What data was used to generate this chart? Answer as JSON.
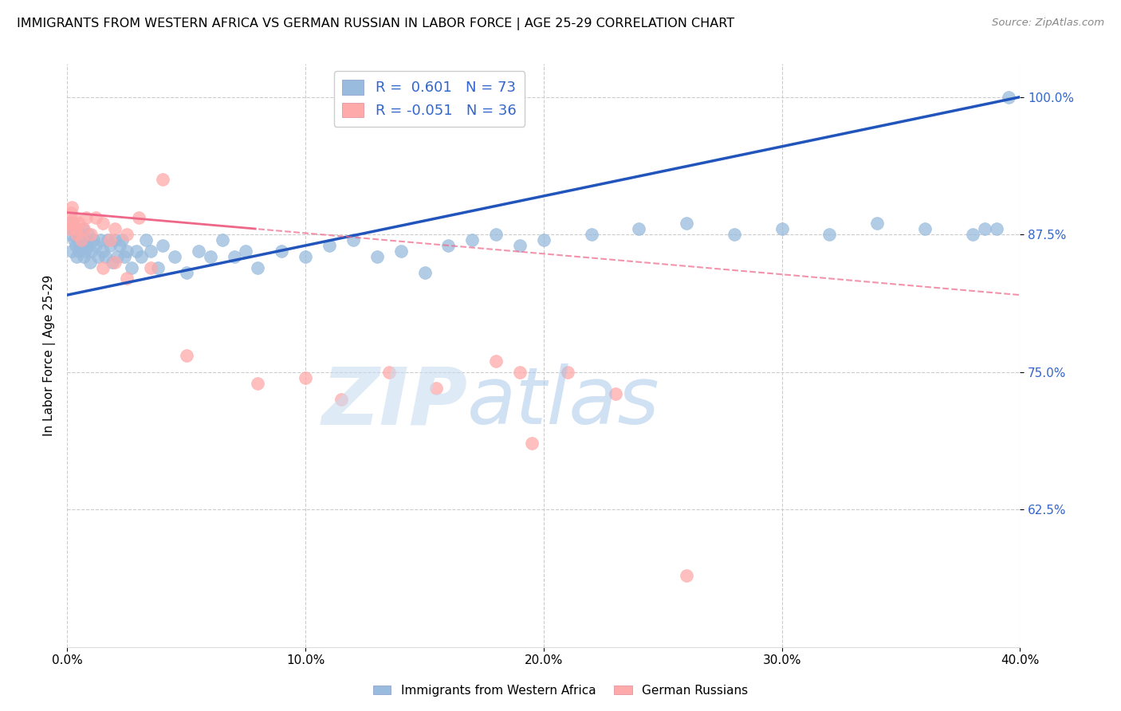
{
  "title": "IMMIGRANTS FROM WESTERN AFRICA VS GERMAN RUSSIAN IN LABOR FORCE | AGE 25-29 CORRELATION CHART",
  "source": "Source: ZipAtlas.com",
  "ylabel_label": "In Labor Force | Age 25-29",
  "legend_label1": "Immigrants from Western Africa",
  "legend_label2": "German Russians",
  "R1": 0.601,
  "N1": 73,
  "R2": -0.051,
  "N2": 36,
  "blue_color": "#99BBDD",
  "pink_color": "#FFAAAA",
  "blue_line_color": "#2255BB",
  "pink_line_color": "#EE6688",
  "blue_scatter_x": [
    0.1,
    0.15,
    0.2,
    0.25,
    0.3,
    0.35,
    0.4,
    0.45,
    0.5,
    0.55,
    0.6,
    0.65,
    0.7,
    0.75,
    0.8,
    0.85,
    0.9,
    0.95,
    1.0,
    1.1,
    1.2,
    1.3,
    1.4,
    1.5,
    1.6,
    1.7,
    1.8,
    1.9,
    2.0,
    2.1,
    2.2,
    2.3,
    2.4,
    2.5,
    2.7,
    2.9,
    3.1,
    3.3,
    3.5,
    3.8,
    4.0,
    4.5,
    5.0,
    5.5,
    6.0,
    6.5,
    7.0,
    7.5,
    8.0,
    9.0,
    10.0,
    11.0,
    12.0,
    13.0,
    14.0,
    15.0,
    16.0,
    17.0,
    18.0,
    19.0,
    20.0,
    22.0,
    24.0,
    26.0,
    28.0,
    30.0,
    32.0,
    34.0,
    36.0,
    38.0,
    38.5,
    39.0,
    39.5
  ],
  "blue_scatter_y": [
    87.5,
    88.5,
    86.0,
    88.0,
    87.0,
    86.5,
    85.5,
    87.0,
    86.0,
    87.5,
    86.5,
    88.0,
    85.5,
    86.0,
    87.0,
    86.5,
    87.5,
    85.0,
    86.0,
    87.0,
    86.5,
    85.5,
    87.0,
    86.0,
    85.5,
    87.0,
    86.5,
    85.0,
    87.0,
    85.5,
    86.5,
    87.0,
    85.5,
    86.0,
    84.5,
    86.0,
    85.5,
    87.0,
    86.0,
    84.5,
    86.5,
    85.5,
    84.0,
    86.0,
    85.5,
    87.0,
    85.5,
    86.0,
    84.5,
    86.0,
    85.5,
    86.5,
    87.0,
    85.5,
    86.0,
    84.0,
    86.5,
    87.0,
    87.5,
    86.5,
    87.0,
    87.5,
    88.0,
    88.5,
    87.5,
    88.0,
    87.5,
    88.5,
    88.0,
    87.5,
    88.0,
    88.0,
    100.0
  ],
  "pink_scatter_x": [
    0.05,
    0.1,
    0.15,
    0.2,
    0.25,
    0.3,
    0.35,
    0.4,
    0.5,
    0.6,
    0.7,
    0.8,
    1.0,
    1.2,
    1.5,
    1.8,
    2.0,
    2.5,
    3.0,
    4.0,
    1.5,
    2.0,
    2.5,
    3.5,
    5.0,
    8.0,
    10.0,
    11.5,
    13.5,
    15.5,
    18.0,
    19.0,
    19.5,
    21.0,
    23.0,
    26.0
  ],
  "pink_scatter_y": [
    88.5,
    88.0,
    89.5,
    90.0,
    88.5,
    89.0,
    88.0,
    87.5,
    88.5,
    87.0,
    88.0,
    89.0,
    87.5,
    89.0,
    88.5,
    87.0,
    88.0,
    87.5,
    89.0,
    92.5,
    84.5,
    85.0,
    83.5,
    84.5,
    76.5,
    74.0,
    74.5,
    72.5,
    75.0,
    73.5,
    76.0,
    75.0,
    68.5,
    75.0,
    73.0,
    56.5
  ],
  "xmin": 0.0,
  "xmax": 40.0,
  "ymin": 50.0,
  "ymax": 103.0,
  "ytick_vals": [
    62.5,
    75.0,
    87.5,
    100.0
  ],
  "ytick_labels": [
    "62.5%",
    "75.0%",
    "87.5%",
    "100.0%"
  ],
  "xtick_positions": [
    0.0,
    10.0,
    20.0,
    30.0,
    40.0
  ],
  "xtick_labels": [
    "0.0%",
    "10.0%",
    "20.0%",
    "30.0%",
    "40.0%"
  ]
}
